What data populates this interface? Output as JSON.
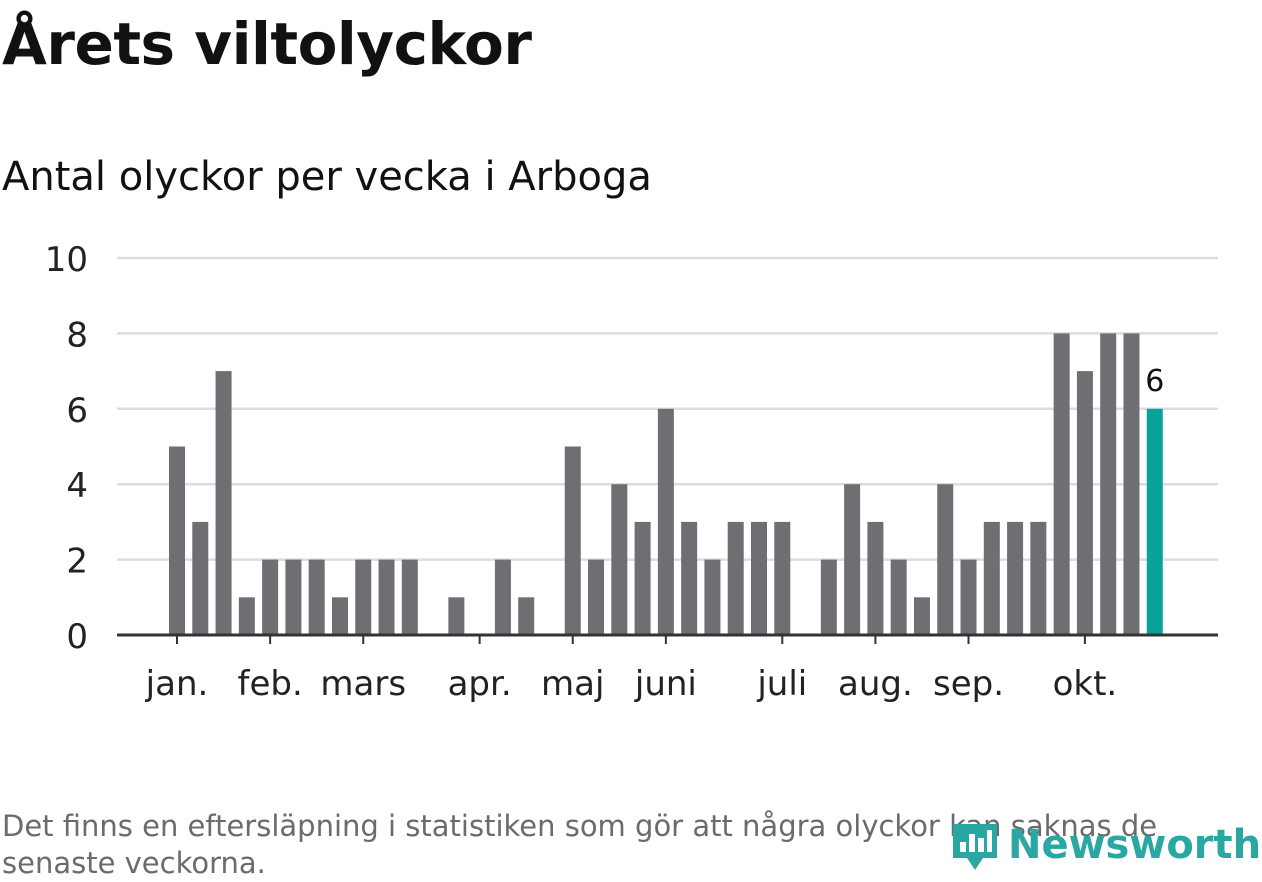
{
  "title": "Årets viltolyckor",
  "subtitle": "Antal olyckor per vecka i Arboga",
  "chart_data": {
    "type": "bar",
    "title": "Antal olyckor per vecka i Arboga",
    "xlabel": "",
    "ylabel": "",
    "ylim": [
      0,
      10
    ],
    "yticks": [
      0,
      2,
      4,
      6,
      8,
      10
    ],
    "grid": true,
    "weeks": [
      1,
      2,
      3,
      4,
      5,
      6,
      7,
      8,
      9,
      10,
      11,
      12,
      13,
      14,
      15,
      16,
      17,
      18,
      19,
      20,
      21,
      22,
      23,
      24,
      25,
      26,
      27,
      28,
      29,
      30,
      31,
      32,
      33,
      34,
      35,
      36,
      37,
      38,
      39,
      40,
      41,
      42,
      43
    ],
    "values": [
      5,
      3,
      7,
      1,
      2,
      2,
      2,
      1,
      2,
      2,
      2,
      0,
      1,
      0,
      2,
      1,
      0,
      5,
      2,
      4,
      3,
      6,
      3,
      2,
      3,
      3,
      3,
      0,
      2,
      4,
      3,
      2,
      1,
      4,
      2,
      3,
      3,
      3,
      8,
      7,
      8,
      8,
      6
    ],
    "month_labels": [
      {
        "label": "jan.",
        "week": 1
      },
      {
        "label": "feb.",
        "week": 5
      },
      {
        "label": "mars",
        "week": 9
      },
      {
        "label": "apr.",
        "week": 14
      },
      {
        "label": "maj",
        "week": 18
      },
      {
        "label": "juni",
        "week": 22
      },
      {
        "label": "juli",
        "week": 27
      },
      {
        "label": "aug.",
        "week": 31
      },
      {
        "label": "sep.",
        "week": 35
      },
      {
        "label": "okt.",
        "week": 40
      }
    ],
    "highlight": {
      "week": 43,
      "value": 6,
      "label": "6"
    },
    "colors": {
      "bar": "#6f6e73",
      "highlight": "#0aa39a",
      "grid": "#dddddd",
      "axis": "#333333"
    }
  },
  "footnote": "Det finns en eftersläpning i statistiken som gör att några olyckor kan saknas de senaste veckorna.",
  "brand": {
    "name": "Newsworthy",
    "icon": "newsworthy-logo-icon",
    "color": "#2aa7a3"
  }
}
